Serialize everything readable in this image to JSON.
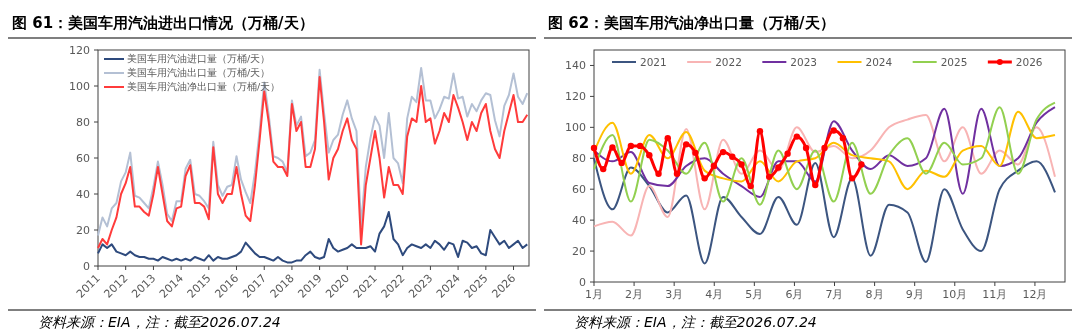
{
  "chart_data": [
    {
      "type": "line",
      "title": "图 61：美国车用汽油进出口情况（万桶/天）",
      "annotations": [
        "资料来源：EIA，注：截至2026.07.24"
      ],
      "legend": "top left",
      "ylim": [
        0,
        120
      ],
      "yticks": [
        0,
        20,
        40,
        60,
        80,
        100,
        120
      ],
      "xlim": [
        "2011-01",
        "2026-07-24"
      ],
      "xticks": [
        "2011",
        "2012",
        "2013",
        "2014",
        "2015",
        "2016",
        "2017",
        "2018",
        "2019",
        "2020",
        "2021",
        "2022",
        "2023",
        "2024",
        "2025",
        "2026"
      ],
      "x": [
        "2011-01",
        "2011-03",
        "2011-05",
        "2011-07",
        "2011-09",
        "2011-11",
        "2012-01",
        "2012-03",
        "2012-05",
        "2012-07",
        "2012-09",
        "2012-11",
        "2013-01",
        "2013-03",
        "2013-05",
        "2013-07",
        "2013-09",
        "2013-11",
        "2014-01",
        "2014-03",
        "2014-05",
        "2014-07",
        "2014-09",
        "2014-11",
        "2015-01",
        "2015-03",
        "2015-05",
        "2015-07",
        "2015-09",
        "2015-11",
        "2016-01",
        "2016-03",
        "2016-05",
        "2016-07",
        "2016-09",
        "2016-11",
        "2017-01",
        "2017-03",
        "2017-05",
        "2017-07",
        "2017-09",
        "2017-11",
        "2018-01",
        "2018-03",
        "2018-05",
        "2018-07",
        "2018-09",
        "2018-11",
        "2019-01",
        "2019-03",
        "2019-05",
        "2019-07",
        "2019-09",
        "2019-11",
        "2020-01",
        "2020-03",
        "2020-05",
        "2020-07",
        "2020-09",
        "2020-11",
        "2021-01",
        "2021-03",
        "2021-05",
        "2021-07",
        "2021-09",
        "2021-11",
        "2022-01",
        "2022-03",
        "2022-05",
        "2022-07",
        "2022-09",
        "2022-11",
        "2023-01",
        "2023-03",
        "2023-05",
        "2023-07",
        "2023-09",
        "2023-11",
        "2024-01",
        "2024-03",
        "2024-05",
        "2024-07",
        "2024-09",
        "2024-11",
        "2025-01",
        "2025-03",
        "2025-05",
        "2025-07",
        "2025-09",
        "2025-11",
        "2026-01",
        "2026-03",
        "2026-05",
        "2026-07"
      ],
      "series": [
        {
          "name": "美国车用汽油进口量（万桶/天）",
          "color": "#2e4a7d",
          "values": [
            7,
            12,
            10,
            12,
            8,
            7,
            6,
            8,
            6,
            5,
            5,
            4,
            4,
            3,
            5,
            4,
            3,
            4,
            3,
            4,
            3,
            5,
            4,
            3,
            6,
            3,
            5,
            4,
            4,
            5,
            6,
            8,
            13,
            10,
            7,
            5,
            5,
            4,
            3,
            5,
            3,
            2,
            2,
            3,
            3,
            6,
            8,
            5,
            4,
            5,
            15,
            10,
            8,
            9,
            10,
            12,
            10,
            10,
            10,
            11,
            8,
            18,
            22,
            30,
            15,
            12,
            6,
            10,
            12,
            11,
            10,
            12,
            10,
            14,
            12,
            9,
            13,
            12,
            5,
            14,
            13,
            10,
            11,
            7,
            6,
            20,
            16,
            12,
            14,
            10,
            12,
            14,
            10,
            12
          ]
        },
        {
          "name": "美国车用汽油出口量（万桶/天）",
          "color": "#b4c0d4",
          "values": [
            17,
            27,
            22,
            32,
            35,
            47,
            52,
            63,
            39,
            38,
            35,
            32,
            44,
            58,
            45,
            29,
            25,
            36,
            36,
            54,
            59,
            40,
            39,
            36,
            32,
            69,
            45,
            39,
            44,
            45,
            61,
            48,
            41,
            35,
            52,
            75,
            102,
            84,
            61,
            60,
            58,
            52,
            92,
            78,
            83,
            61,
            63,
            70,
            109,
            85,
            63,
            70,
            73,
            84,
            92,
            82,
            75,
            22,
            55,
            71,
            83,
            78,
            60,
            85,
            60,
            57,
            46,
            82,
            94,
            91,
            110,
            92,
            92,
            82,
            87,
            94,
            93,
            107,
            93,
            94,
            83,
            90,
            86,
            92,
            96,
            95,
            81,
            72,
            89,
            95,
            107,
            94,
            90,
            96
          ]
        },
        {
          "name": "美国车用汽油净出口量（万桶/天）",
          "color": "#ff3b3b",
          "values": [
            10,
            15,
            12,
            20,
            27,
            40,
            46,
            55,
            33,
            33,
            30,
            28,
            40,
            55,
            40,
            25,
            22,
            32,
            33,
            50,
            56,
            35,
            35,
            33,
            26,
            66,
            40,
            35,
            40,
            40,
            55,
            40,
            28,
            25,
            45,
            70,
            97,
            80,
            58,
            55,
            55,
            50,
            90,
            75,
            80,
            55,
            55,
            65,
            105,
            80,
            48,
            60,
            65,
            75,
            82,
            70,
            65,
            12,
            45,
            60,
            75,
            60,
            38,
            55,
            45,
            45,
            40,
            72,
            82,
            80,
            100,
            80,
            82,
            68,
            75,
            85,
            80,
            95,
            88,
            80,
            70,
            80,
            75,
            85,
            90,
            75,
            65,
            60,
            75,
            85,
            95,
            80,
            80,
            84
          ]
        }
      ]
    },
    {
      "type": "line",
      "title": "图 62：美国车用汽油净出口量（万桶/天）",
      "annotations": [
        "资料来源：EIA，注：截至2026.07.24"
      ],
      "legend": "top",
      "ylim": [
        0,
        150
      ],
      "yticks": [
        0,
        20,
        40,
        60,
        80,
        100,
        120,
        140
      ],
      "xlim": [
        1,
        12.75
      ],
      "xticks": [
        {
          "value": 1,
          "label": "1月"
        },
        {
          "value": 2,
          "label": "2月"
        },
        {
          "value": 3,
          "label": "3月"
        },
        {
          "value": 4,
          "label": "4月"
        },
        {
          "value": 5,
          "label": "5月"
        },
        {
          "value": 6,
          "label": "6月"
        },
        {
          "value": 7,
          "label": "7月"
        },
        {
          "value": 8,
          "label": "8月"
        },
        {
          "value": 9,
          "label": "9月"
        },
        {
          "value": 10,
          "label": "10月"
        },
        {
          "value": 11,
          "label": "11月"
        },
        {
          "value": 12,
          "label": "12月"
        }
      ],
      "x": [
        1,
        1.46,
        1.92,
        2.38,
        2.84,
        3.3,
        3.76,
        4.22,
        4.68,
        5.14,
        5.6,
        6.06,
        6.52,
        6.98,
        7.44,
        7.9,
        8.36,
        8.82,
        9.28,
        9.74,
        10.2,
        10.66,
        11.12,
        11.58,
        12.04,
        12.5
      ],
      "series": [
        {
          "name": "2021",
          "color": "#3c5580",
          "values": [
            80,
            47,
            74,
            62,
            45,
            56,
            12,
            55,
            42,
            31,
            55,
            37,
            77,
            29,
            67,
            17,
            50,
            45,
            13,
            60,
            34,
            20,
            60,
            72,
            78,
            58
          ]
        },
        {
          "name": "2022",
          "color": "#f8b4b4",
          "values": [
            36,
            39,
            30,
            62,
            42,
            99,
            47,
            92,
            70,
            85,
            72,
            100,
            84,
            88,
            80,
            85,
            100,
            105,
            108,
            78,
            100,
            70,
            85,
            76,
            100,
            68
          ]
        },
        {
          "name": "2023",
          "color": "#7030a0",
          "values": [
            85,
            78,
            84,
            64,
            62,
            75,
            80,
            70,
            62,
            55,
            78,
            78,
            65,
            104,
            85,
            73,
            82,
            75,
            80,
            112,
            57,
            112,
            75,
            80,
            103,
            113
          ]
        },
        {
          "name": "2024",
          "color": "#ffc000",
          "values": [
            84,
            103,
            70,
            95,
            80,
            97,
            72,
            67,
            65,
            78,
            65,
            78,
            80,
            90,
            82,
            80,
            78,
            60,
            72,
            68,
            85,
            88,
            75,
            110,
            93,
            95
          ]
        },
        {
          "name": "2025",
          "color": "#92d050",
          "values": [
            73,
            95,
            52,
            92,
            85,
            70,
            90,
            52,
            80,
            50,
            85,
            60,
            85,
            52,
            90,
            57,
            82,
            93,
            70,
            90,
            76,
            80,
            113,
            70,
            105,
            116
          ]
        },
        {
          "name": "2026",
          "color": "#ff0000",
          "marker": "circle",
          "x": [
            1,
            1.23,
            1.46,
            1.69,
            1.92,
            2.15,
            2.38,
            2.61,
            2.84,
            3.07,
            3.3,
            3.53,
            3.76,
            3.99,
            4.22,
            4.45,
            4.68,
            4.91,
            5.14,
            5.37,
            5.6,
            5.83,
            6.06,
            6.29,
            6.52,
            6.75,
            6.98,
            7.21,
            7.44,
            7.67
          ],
          "values": [
            86.6,
            73,
            87,
            77,
            88,
            88,
            82,
            70,
            93,
            70,
            89,
            83.5,
            67,
            75,
            84,
            81,
            76,
            62,
            97.5,
            68,
            74,
            83,
            94,
            86.6,
            62.7,
            86.6,
            98,
            93,
            67,
            76
          ]
        }
      ]
    }
  ]
}
